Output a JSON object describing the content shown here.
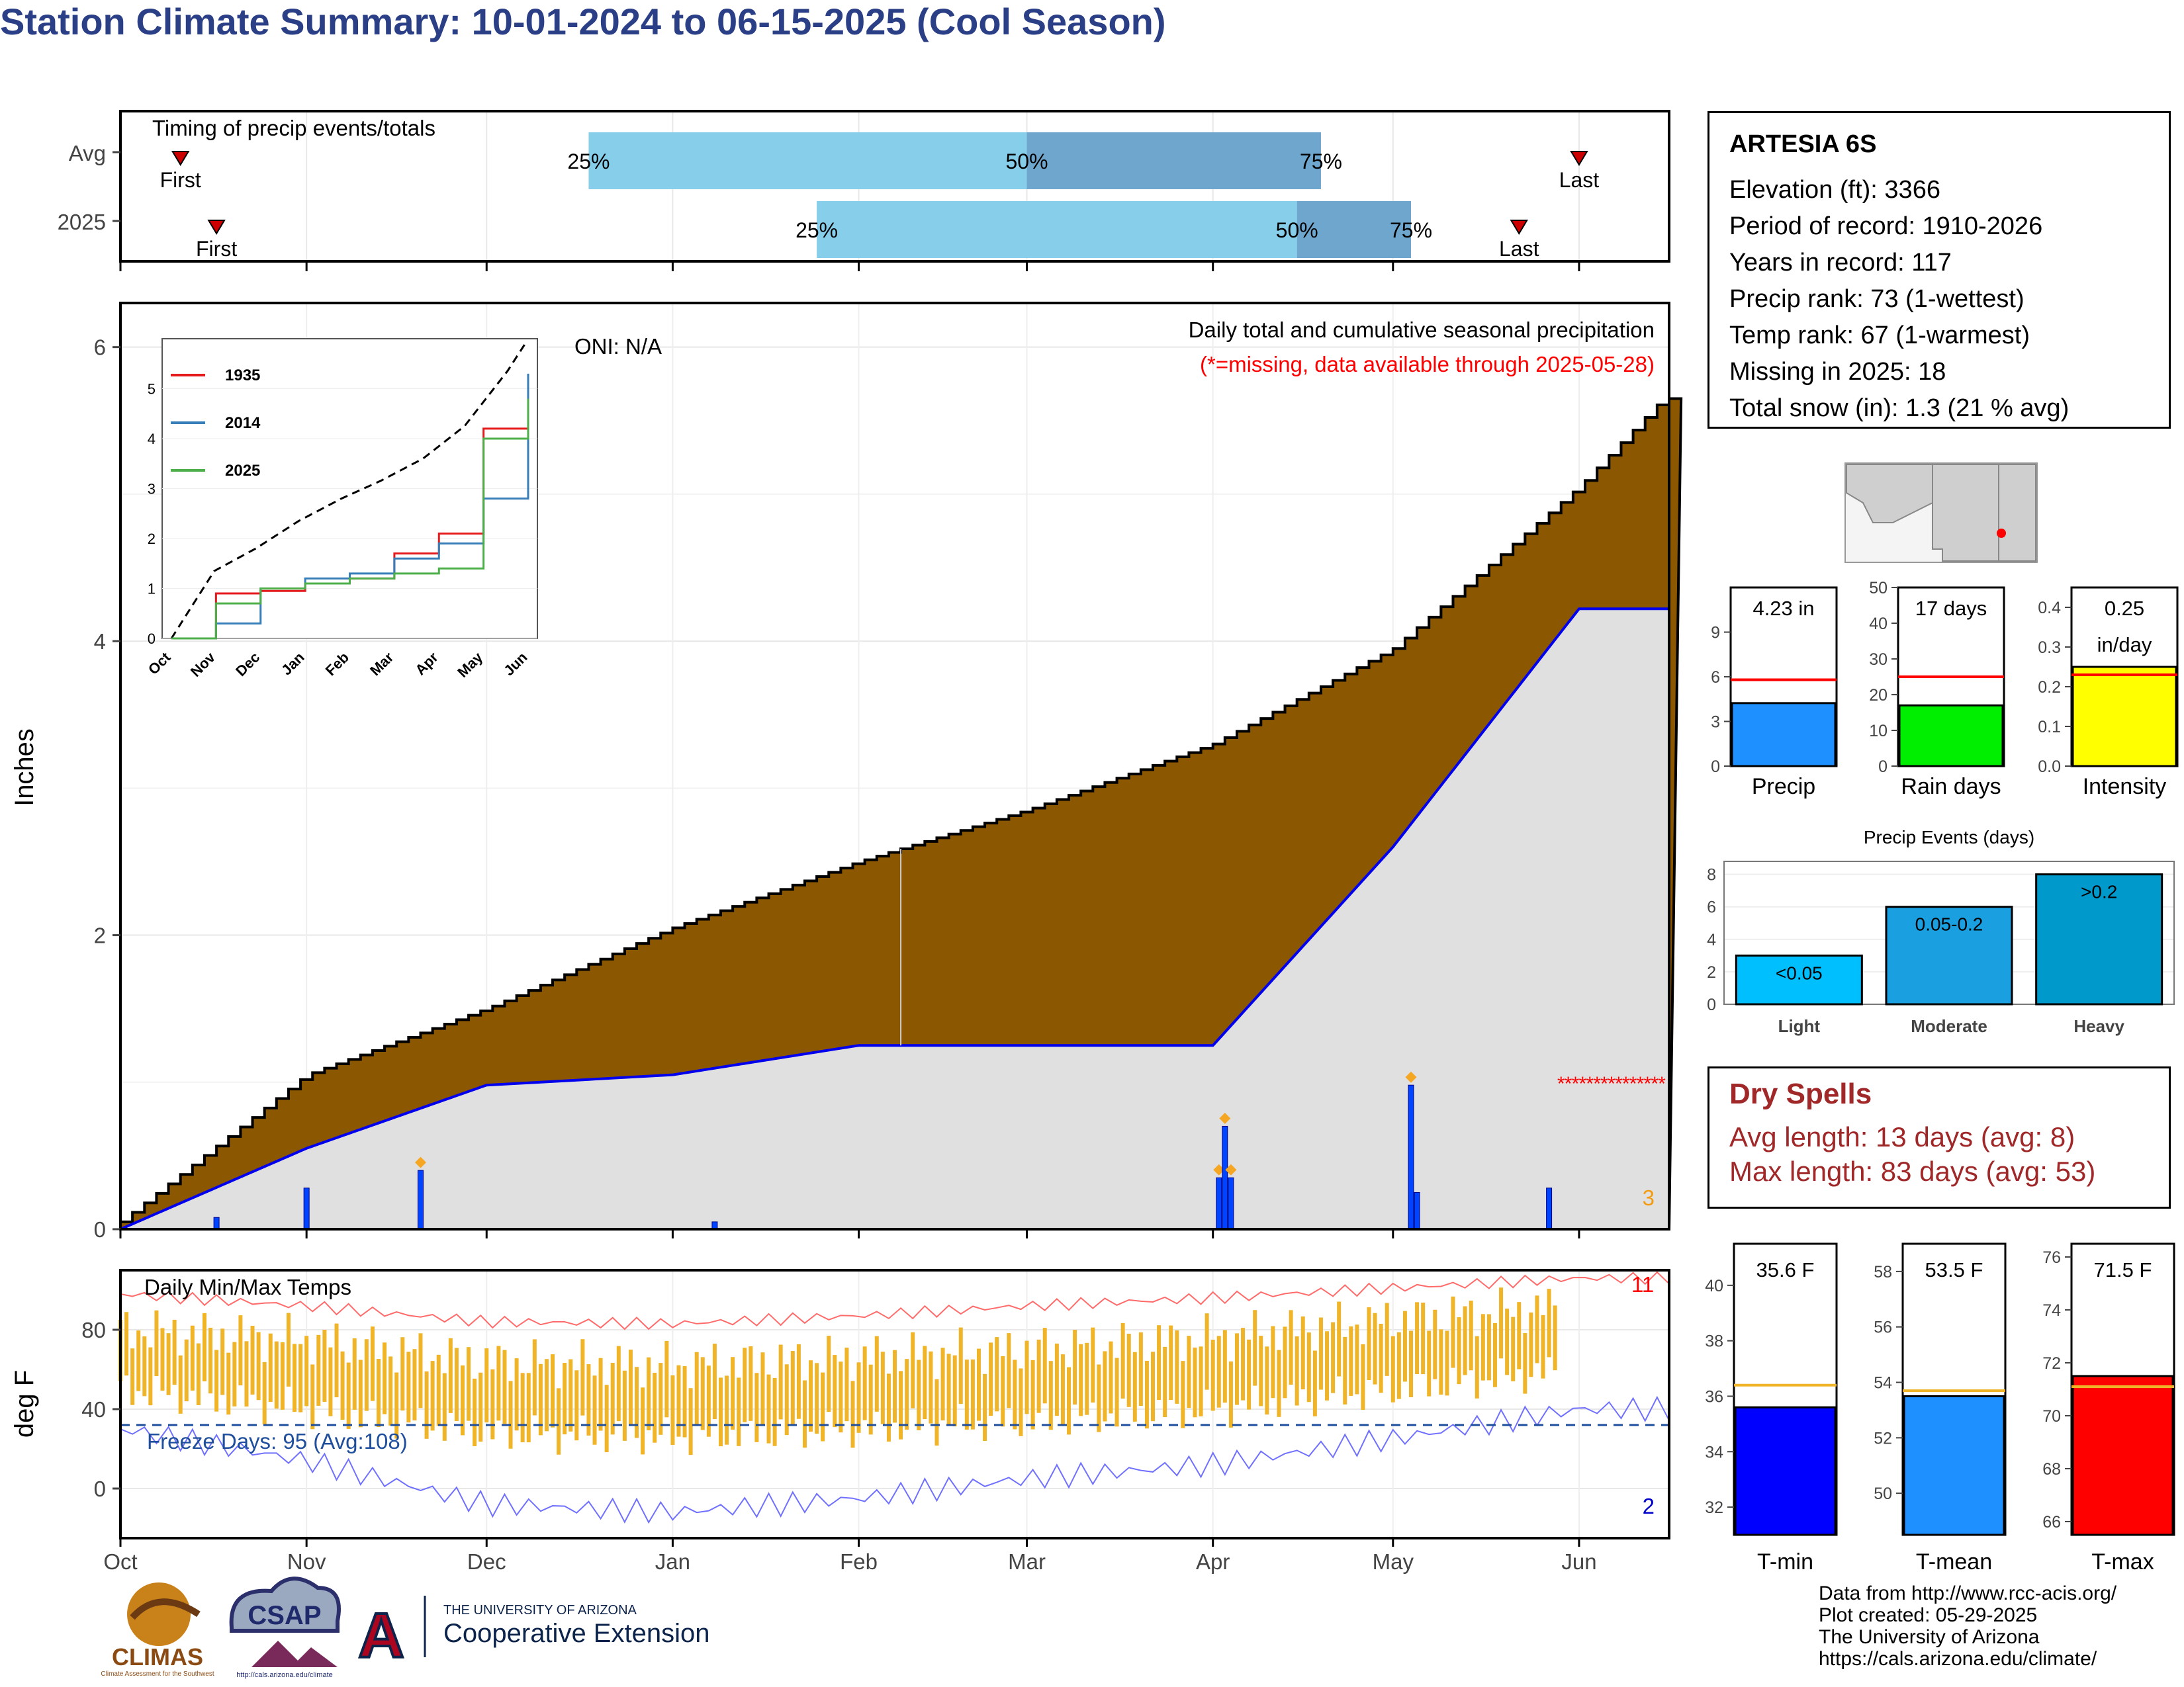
{
  "title": "Station Climate Summary: 10-01-2024 to 06-15-2025 (Cool Season)",
  "colors": {
    "title": "#2a3f86",
    "cumulative_fill": "#8b5700",
    "avg_line": "#0000ee",
    "temp_bars": "#f0b429",
    "precip_bar": "#0044ff",
    "missing": "#ff0000",
    "dry": "#a02828"
  },
  "timing": {
    "label": "Timing of precip events/totals",
    "rows": [
      "Avg",
      "2025"
    ],
    "pct_labels": [
      "25%",
      "50%",
      "75%"
    ],
    "first": "First",
    "last": "Last"
  },
  "precip_panel": {
    "ylabel": "Inches",
    "title": "Daily total and cumulative seasonal precipitation",
    "missing_note": "(*=missing, data available through 2025-05-28)",
    "oni": "ONI: N/A",
    "count_label": "3",
    "yticks": [
      "0",
      "2",
      "4",
      "6"
    ]
  },
  "inset": {
    "legend": [
      "1935",
      "2014",
      "2025"
    ],
    "legend_colors": [
      "#e41a1c",
      "#377eb8",
      "#4daf4a"
    ],
    "yticks": [
      "0",
      "1",
      "2",
      "3",
      "4",
      "5"
    ],
    "xticks": [
      "Oct",
      "Nov",
      "Dec",
      "Jan",
      "Feb",
      "Mar",
      "Apr",
      "May",
      "Jun"
    ]
  },
  "temp_panel": {
    "ylabel": "deg F",
    "title": "Daily Min/Max Temps",
    "freeze": "Freeze Days: 95 (Avg:108)",
    "count_high": "11",
    "count_low": "2",
    "yticks": [
      "0",
      "40",
      "80"
    ]
  },
  "months": [
    "Oct",
    "Nov",
    "Dec",
    "Jan",
    "Feb",
    "Mar",
    "Apr",
    "May",
    "Jun"
  ],
  "info": {
    "station": "ARTESIA 6S",
    "lines": [
      "Elevation (ft): 3366",
      "Period of record: 1910-2026",
      "Years in record: 117",
      "Precip rank: 73 (1-wettest)",
      "Temp rank: 67 (1-warmest)",
      "Missing in 2025: 18",
      "Total snow (in): 1.3 (21 % avg)"
    ]
  },
  "mini_bars": {
    "precip": {
      "label": "Precip",
      "value_text": "4.23 in",
      "value": 4.23,
      "avg": 5.8,
      "ymax": 12,
      "ticks": [
        "0",
        "3",
        "6",
        "9"
      ],
      "color": "#1e90ff"
    },
    "raindays": {
      "label": "Rain days",
      "value_text": "17 days",
      "value": 17,
      "avg": 25,
      "ymax": 50,
      "ticks": [
        "0",
        "10",
        "20",
        "30",
        "40",
        "50"
      ],
      "color": "#00ee00"
    },
    "intensity": {
      "label": "Intensity",
      "value_text": "0.25",
      "value_text2": "in/day",
      "value": 0.25,
      "avg": 0.23,
      "ymax": 0.45,
      "ticks": [
        "0.0",
        "0.1",
        "0.2",
        "0.3",
        "0.4"
      ],
      "color": "#ffff00"
    }
  },
  "events": {
    "title": "Precip Events (days)",
    "categories": [
      "Light",
      "Moderate",
      "Heavy"
    ],
    "bar_labels": [
      "<0.05",
      "0.05-0.2",
      ">0.2"
    ],
    "values": [
      3,
      6,
      8
    ],
    "colors": [
      "#00bfff",
      "#1a9fe0",
      "#0099cc"
    ],
    "ticks": [
      "0",
      "2",
      "4",
      "6",
      "8"
    ]
  },
  "dry": {
    "title": "Dry Spells",
    "avg": "Avg length: 13 days (avg: 8)",
    "max": "Max length: 83 days (avg: 53)"
  },
  "temps": {
    "tmin": {
      "label": "T-min",
      "value_text": "35.6 F",
      "value": 35.6,
      "avg": 36.4,
      "ymin": 31,
      "ymax": 41.5,
      "ticks": [
        "32",
        "34",
        "36",
        "38",
        "40"
      ],
      "color": "#0000ff"
    },
    "tmean": {
      "label": "T-mean",
      "value_text": "53.5 F",
      "value": 53.5,
      "avg": 53.7,
      "ymin": 48.5,
      "ymax": 59,
      "ticks": [
        "50",
        "52",
        "54",
        "56",
        "58"
      ],
      "color": "#1e90ff"
    },
    "tmax": {
      "label": "T-max",
      "value_text": "71.5 F",
      "value": 71.5,
      "avg": 71.1,
      "ymin": 65.5,
      "ymax": 76.5,
      "ticks": [
        "66",
        "68",
        "70",
        "72",
        "74",
        "76"
      ],
      "color": "#ff0000"
    }
  },
  "footer": {
    "lines": [
      "Data from http://www.rcc-acis.org/",
      "Plot created: 05-29-2025",
      "The University of Arizona",
      "https://cals.arizona.edu/climate/"
    ],
    "climas": "CLIMAS",
    "climas_sub": "Climate Assessment for the Southwest",
    "csap": "CSAP",
    "csap_url": "http://cals.arizona.edu/climate",
    "ua_small": "THE UNIVERSITY OF ARIZONA",
    "ua_big": "Cooperative Extension",
    "ua_letter": "A"
  },
  "chart_data": [
    {
      "type": "bar",
      "title": "Timing of precip events/totals",
      "categories": [
        "Avg",
        "2025"
      ],
      "series": [
        {
          "name": "Avg",
          "first": "Oct 11",
          "p25": "Dec 18",
          "p50": "Mar 1",
          "p75": "Apr 19",
          "last": "Jun 1"
        },
        {
          "name": "2025",
          "first": "Oct 17",
          "p25": "Jan 25",
          "p50": "Apr 15",
          "p75": "May 4",
          "last": "May 22"
        }
      ]
    },
    {
      "type": "area",
      "title": "Daily total and cumulative seasonal precipitation",
      "ylabel": "Inches",
      "ylim": [
        0,
        6.3
      ],
      "x": [
        "Oct 1",
        "Nov 1",
        "Dec 1",
        "Jan 1",
        "Feb 1",
        "Mar 1",
        "Apr 1",
        "May 1",
        "Jun 1",
        "Jun 15"
      ],
      "series": [
        {
          "name": "average cumulative",
          "values": [
            0.05,
            1.05,
            1.5,
            2.05,
            2.5,
            2.85,
            3.3,
            3.95,
            5.05,
            5.65
          ]
        },
        {
          "name": "2025 cumulative",
          "values": [
            0.0,
            0.55,
            0.98,
            1.05,
            1.25,
            1.25,
            1.25,
            2.6,
            4.22,
            4.22
          ]
        }
      ],
      "daily_events": [
        {
          "date": "Oct 17",
          "value": 0.08
        },
        {
          "date": "Nov 1",
          "value": 0.28
        },
        {
          "date": "Nov 20",
          "value": 0.4
        },
        {
          "date": "Jan 8",
          "value": 0.05
        },
        {
          "date": "Apr 2",
          "value": 0.35
        },
        {
          "date": "Apr 3",
          "value": 0.7
        },
        {
          "date": "Apr 4",
          "value": 0.35
        },
        {
          "date": "May 4",
          "value": 0.98
        },
        {
          "date": "May 5",
          "value": 0.25
        },
        {
          "date": "May 27",
          "value": 0.28
        }
      ],
      "missing": "May 29 - Jun 15"
    },
    {
      "type": "line",
      "title": "",
      "x": [
        "Oct",
        "Nov",
        "Dec",
        "Jan",
        "Feb",
        "Mar",
        "Apr",
        "May",
        "Jun"
      ],
      "ylim": [
        0,
        6
      ],
      "series": [
        {
          "name": "1935",
          "values": [
            0,
            0.9,
            0.95,
            1.1,
            1.2,
            1.7,
            2.1,
            4.2,
            5.1
          ]
        },
        {
          "name": "2014",
          "values": [
            0,
            0.3,
            1.0,
            1.2,
            1.3,
            1.6,
            1.9,
            2.8,
            5.3
          ]
        },
        {
          "name": "2025",
          "values": [
            0,
            0.7,
            1.0,
            1.1,
            1.2,
            1.3,
            1.4,
            4.0,
            4.8
          ]
        }
      ]
    },
    {
      "type": "bar",
      "title": "Daily Min/Max Temps",
      "ylabel": "deg F",
      "ylim": [
        -25,
        110
      ],
      "x": [
        "Oct",
        "Nov",
        "Dec",
        "Jan",
        "Feb",
        "Mar",
        "Apr",
        "May",
        "Jun"
      ],
      "series": [
        {
          "name": "record high",
          "values": [
            98,
            92,
            84,
            83,
            87,
            92,
            96,
            101,
            106
          ]
        },
        {
          "name": "typical high",
          "values": [
            80,
            75,
            64,
            62,
            66,
            70,
            76,
            85,
            92
          ]
        },
        {
          "name": "typical low",
          "values": [
            50,
            40,
            28,
            26,
            30,
            34,
            40,
            50,
            60
          ]
        },
        {
          "name": "record low",
          "values": [
            30,
            14,
            -8,
            -12,
            -5,
            5,
            12,
            25,
            40
          ]
        }
      ],
      "freeze_line": 32
    }
  ]
}
